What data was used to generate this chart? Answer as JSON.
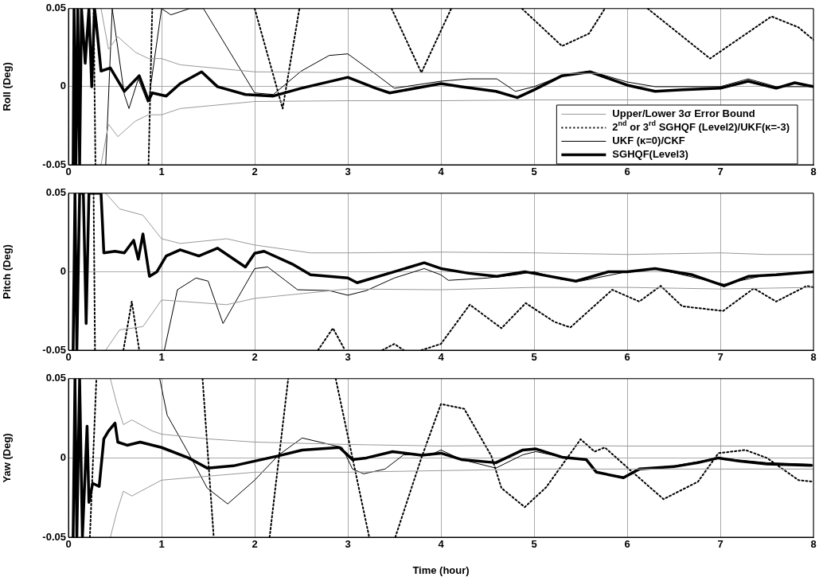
{
  "chart_data": [
    {
      "type": "line",
      "ylabel": "Roll (Deg)",
      "xlim": [
        0,
        8
      ],
      "xticks": [
        0,
        1,
        2,
        3,
        4,
        5,
        6,
        7,
        8
      ],
      "ylim": [
        -0.05,
        0.05
      ],
      "yticks": [
        -0.05,
        0,
        0.05
      ],
      "grid": true,
      "legend": "bottom right",
      "series": [
        {
          "name": "Upper/Lower 3σ Error Bound",
          "color": "#999999",
          "x": [
            0.35,
            0.43,
            0.53,
            0.72,
            0.86,
            1,
            1.2,
            2,
            3,
            4,
            5,
            6,
            7,
            8
          ],
          "values": [
            0.05,
            0.024,
            0.032,
            0.022,
            0.018,
            0.018,
            0.014,
            0.0095,
            0.009,
            0.009,
            0.0085,
            0.0085,
            0.0085,
            0.0085
          ]
        },
        {
          "color": "#999999",
          "x": [
            0.35,
            0.43,
            0.53,
            0.72,
            0.86,
            1,
            1.2,
            2,
            3,
            4,
            5,
            6,
            7,
            8
          ],
          "values": [
            -0.05,
            -0.024,
            -0.032,
            -0.022,
            -0.018,
            -0.018,
            -0.014,
            -0.0095,
            -0.009,
            -0.009,
            -0.0085,
            -0.0085,
            -0.0085,
            -0.0085
          ]
        },
        {
          "name": "2$^{nd}$ or 3$^{rd}$ SGHQF (Level2)/UKF(κ=-3)",
          "color": "#000000",
          "line_style": "dotted",
          "x": [
            0.27,
            0.29,
            0.5,
            0.86,
            0.9,
            1.5,
            2.0,
            2.3,
            2.48,
            3.0,
            3.47,
            3.79,
            4.11,
            4.5,
            4.87,
            5.3,
            5.59,
            5.76,
            6.0,
            6.22,
            6.89,
            7.55,
            7.84,
            8.0
          ],
          "values": [
            0.05,
            -0.05,
            null,
            -0.05,
            0.05,
            null,
            0.05,
            -0.014,
            0.05,
            null,
            0.05,
            0.009,
            0.05,
            null,
            0.05,
            0.026,
            0.034,
            0.05,
            null,
            0.05,
            0.018,
            0.045,
            0.038,
            0.03
          ]
        },
        {
          "name": "UKF (κ=0)/CKF",
          "color": "#000000",
          "x": [
            0.4,
            0.47,
            0.6,
            0.65,
            0.75,
            0.85,
            0.87,
            1.0,
            1.1,
            1.3,
            1.45,
            2.0,
            2.2,
            2.5,
            2.8,
            3.0,
            3.3,
            3.5,
            4.0,
            4.3,
            4.6,
            4.8,
            5.0,
            5.3,
            5.6,
            6.0,
            6.3,
            7.0,
            7.3,
            7.6,
            8.0
          ],
          "values": [
            -0.05,
            0.05,
            -0.005,
            -0.014,
            0.005,
            -0.01,
            -0.005,
            0.05,
            0.046,
            0.05,
            0.05,
            -0.004,
            -0.005,
            0.01,
            0.02,
            0.021,
            0.008,
            -0.001,
            0.0035,
            0.005,
            0.005,
            -0.003,
            0,
            0.007,
            0.01,
            0.003,
            0,
            0,
            0.005,
            0,
            0
          ]
        },
        {
          "name": "SGHQF(Level3)",
          "color": "#000000",
          "x": [
            0.05,
            0.06,
            0.08,
            0.1,
            0.12,
            0.14,
            0.18,
            0.22,
            0.25,
            0.28,
            0.3,
            0.35,
            0.45,
            0.6,
            0.76,
            0.86,
            0.9,
            1.05,
            1.2,
            1.43,
            1.6,
            1.9,
            2.2,
            2.5,
            3.0,
            3.3,
            3.45,
            4.0,
            4.22,
            4.59,
            4.82,
            5.0,
            5.3,
            5.6,
            6.0,
            6.3,
            6.6,
            7.0,
            7.3,
            7.6,
            7.8,
            8.0
          ],
          "values": [
            -0.05,
            0.05,
            -0.05,
            0.05,
            -0.05,
            0.05,
            0.015,
            0.05,
            0,
            0.05,
            0.04,
            0.01,
            0.012,
            -0.003,
            0.007,
            -0.009,
            -0.004,
            -0.006,
            0.002,
            0.0095,
            0,
            -0.005,
            -0.006,
            -0.001,
            0.006,
            -0.001,
            -0.004,
            0.002,
            0,
            -0.003,
            -0.007,
            -0.002,
            0.007,
            0.0095,
            0.001,
            -0.003,
            -0.002,
            -0.001,
            0.0035,
            -0.001,
            0.0025,
            0
          ]
        }
      ]
    },
    {
      "type": "line",
      "ylabel": "Pitch (Deg)",
      "xlim": [
        0,
        8
      ],
      "xticks": [
        0,
        1,
        2,
        3,
        4,
        5,
        6,
        7,
        8
      ],
      "ylim": [
        -0.05,
        0.05
      ],
      "yticks": [
        -0.05,
        0,
        0.05
      ],
      "grid": true,
      "series": [
        {
          "color": "#999999",
          "x": [
            0.4,
            0.55,
            0.8,
            1.0,
            1.2,
            1.7,
            2.0,
            2.6,
            3.0,
            4.0,
            5.0,
            6.0,
            7.0,
            7.5,
            8.0
          ],
          "values": [
            0.05,
            0.04,
            0.036,
            0.021,
            0.018,
            0.021,
            0.017,
            0.012,
            0.012,
            0.0125,
            0.012,
            0.011,
            0.012,
            0.011,
            0.011
          ]
        },
        {
          "color": "#999999",
          "x": [
            0.4,
            0.55,
            0.8,
            1.0,
            1.7,
            2.0,
            3.0,
            4.0,
            5.0,
            6.0,
            7.0,
            8.0
          ],
          "values": [
            -0.05,
            -0.037,
            -0.035,
            -0.018,
            -0.021,
            -0.017,
            -0.011,
            -0.0115,
            -0.01,
            -0.01,
            -0.011,
            -0.01
          ]
        },
        {
          "color": "#000000",
          "line_style": "dotted",
          "x": [
            0.27,
            0.285,
            0.45,
            0.59,
            0.68,
            0.76,
            1.5,
            2.68,
            2.84,
            2.97,
            3.2,
            3.37,
            3.5,
            3.6,
            3.7,
            3.79,
            4.0,
            4.31,
            4.65,
            4.91,
            5.22,
            5.39,
            5.84,
            6.13,
            6.36,
            6.59,
            7.03,
            7.36,
            7.6,
            7.93,
            8.0
          ],
          "values": [
            0.05,
            -0.05,
            null,
            -0.05,
            -0.019,
            -0.05,
            null,
            -0.05,
            -0.036,
            -0.05,
            null,
            -0.05,
            -0.046,
            -0.05,
            null,
            -0.05,
            -0.046,
            -0.021,
            -0.036,
            -0.02,
            -0.032,
            -0.0355,
            -0.0115,
            -0.019,
            -0.009,
            -0.022,
            -0.025,
            -0.0106,
            -0.019,
            -0.009,
            -0.01
          ]
        },
        {
          "color": "#000000",
          "x": [
            1.03,
            1.17,
            1.37,
            1.5,
            1.66,
            2.0,
            2.14,
            2.46,
            2.8,
            3.0,
            3.2,
            3.5,
            3.82,
            4.0,
            4.08,
            4.5,
            4.8,
            5.0,
            5.3,
            5.5,
            6.0,
            6.3,
            7.04,
            7.5,
            8.0
          ],
          "values": [
            -0.05,
            -0.0115,
            -0.004,
            -0.006,
            -0.033,
            0.002,
            0.003,
            -0.0115,
            -0.012,
            -0.015,
            -0.012,
            -0.004,
            0.002,
            -0.002,
            -0.0055,
            -0.004,
            -0.002,
            0,
            -0.005,
            -0.006,
            0,
            0.002,
            -0.008,
            -0.002,
            0
          ]
        },
        {
          "color": "#000000",
          "x": [
            0.05,
            0.07,
            0.09,
            0.12,
            0.16,
            0.19,
            0.22,
            0.35,
            0.38,
            0.5,
            0.6,
            0.7,
            0.75,
            0.8,
            0.87,
            0.95,
            1.05,
            1.2,
            1.4,
            1.6,
            1.9,
            2.0,
            2.1,
            2.4,
            2.6,
            3.0,
            3.1,
            3.5,
            3.82,
            4.0,
            4.3,
            4.6,
            4.9,
            5.45,
            5.8,
            6.0,
            6.3,
            6.7,
            7.04,
            7.3,
            7.6,
            8.0
          ],
          "values": [
            -0.05,
            0.05,
            -0.05,
            0.05,
            0.05,
            -0.033,
            0.05,
            0.05,
            0.012,
            0.013,
            0.012,
            0.02,
            0.008,
            0.024,
            -0.003,
            0,
            0.01,
            0.014,
            0.01,
            0.015,
            0.003,
            0.0117,
            0.013,
            0.005,
            -0.002,
            -0.004,
            -0.007,
            0,
            0.0057,
            0.002,
            -0.001,
            -0.003,
            0,
            -0.006,
            0,
            0,
            0.002,
            -0.002,
            -0.009,
            -0.003,
            -0.002,
            0
          ]
        }
      ]
    },
    {
      "type": "line",
      "ylabel": "Yaw (Deg)",
      "xlabel": "Time (hour)",
      "xlim": [
        0,
        8
      ],
      "xticks": [
        0,
        1,
        2,
        3,
        4,
        5,
        6,
        7,
        8
      ],
      "ylim": [
        -0.05,
        0.05
      ],
      "yticks": [
        -0.05,
        0,
        0.05
      ],
      "grid": true,
      "series": [
        {
          "color": "#999999",
          "x": [
            0.45,
            0.52,
            0.59,
            0.68,
            0.9,
            1.0,
            1.5,
            2.0,
            3.0,
            4.0,
            5.0,
            6.0,
            7.0,
            8.0
          ],
          "values": [
            0.05,
            0.034,
            0.021,
            0.024,
            0.017,
            0.015,
            0.012,
            0.01,
            0.0085,
            0.0075,
            0.008,
            0.0075,
            0.0075,
            0.0075
          ]
        },
        {
          "color": "#999999",
          "x": [
            0.45,
            0.52,
            0.59,
            0.68,
            1.0,
            2.0,
            3.0,
            4.0,
            5.0,
            6.0,
            8.0
          ],
          "values": [
            -0.05,
            -0.034,
            -0.021,
            -0.024,
            -0.014,
            -0.009,
            -0.009,
            -0.008,
            -0.007,
            -0.007,
            -0.007
          ]
        },
        {
          "color": "#000000",
          "line_style": "dotted",
          "x": [
            0.23,
            0.3,
            0.9,
            1.44,
            1.56,
            1.8,
            2.16,
            2.36,
            2.6,
            2.87,
            3.23,
            3.4,
            3.51,
            3.79,
            4.0,
            4.25,
            4.54,
            4.65,
            4.9,
            5.13,
            5.5,
            5.65,
            5.76,
            6.02,
            6.39,
            6.76,
            6.98,
            7.27,
            7.5,
            7.84,
            8.0
          ],
          "values": [
            -0.05,
            0.05,
            null,
            0.05,
            -0.05,
            null,
            -0.05,
            0.05,
            null,
            0.05,
            -0.05,
            null,
            -0.05,
            0,
            0.034,
            0.031,
            0.0014,
            -0.019,
            -0.031,
            -0.0185,
            0.0118,
            0.004,
            0.0066,
            -0.007,
            -0.026,
            -0.015,
            0.003,
            0.005,
            0,
            -0.014,
            -0.015
          ]
        },
        {
          "color": "#000000",
          "x": [
            0.98,
            1.06,
            1.29,
            1.49,
            1.71,
            2.0,
            2.26,
            2.51,
            2.77,
            2.94,
            3.05,
            3.17,
            3.4,
            3.6,
            3.88,
            4.0,
            4.22,
            4.59,
            4.88,
            5.02,
            5.3,
            5.56,
            5.67,
            5.96,
            6.13,
            6.5,
            6.98,
            7.5,
            7.98
          ],
          "values": [
            0.05,
            0.027,
            0.003,
            -0.019,
            -0.029,
            -0.014,
            0.002,
            0.0126,
            0.009,
            0.0066,
            -0.007,
            -0.01,
            -0.007,
            0.002,
            0.0017,
            0.005,
            -0.001,
            -0.0064,
            0.002,
            0.004,
            0.0005,
            -0.001,
            -0.009,
            -0.012,
            -0.007,
            -0.005,
            0,
            -0.003,
            -0.004
          ]
        },
        {
          "color": "#000000",
          "x": [
            0.05,
            0.07,
            0.09,
            0.12,
            0.15,
            0.2,
            0.22,
            0.26,
            0.33,
            0.38,
            0.43,
            0.5,
            0.53,
            0.63,
            0.77,
            1.0,
            1.29,
            1.49,
            1.77,
            2.0,
            2.26,
            2.51,
            2.91,
            3.05,
            3.2,
            3.48,
            3.79,
            4.0,
            4.22,
            4.59,
            4.88,
            5.02,
            5.3,
            5.56,
            5.67,
            5.96,
            6.13,
            6.5,
            6.76,
            6.98,
            7.2,
            7.5,
            7.98
          ],
          "values": [
            -0.05,
            0.05,
            -0.05,
            0.05,
            -0.05,
            0.02,
            -0.028,
            -0.016,
            -0.018,
            0.012,
            0.017,
            0.022,
            0.01,
            0.008,
            0.01,
            0.0066,
            0,
            -0.0064,
            -0.005,
            -0.002,
            0.0014,
            0.005,
            0.0066,
            -0.001,
            0,
            0.004,
            0.0017,
            0.003,
            -0.001,
            -0.003,
            0.005,
            0.0057,
            0.0005,
            -0.001,
            -0.009,
            -0.0125,
            -0.007,
            -0.0055,
            -0.003,
            0,
            -0.002,
            -0.0038,
            -0.0047
          ]
        }
      ]
    }
  ]
}
